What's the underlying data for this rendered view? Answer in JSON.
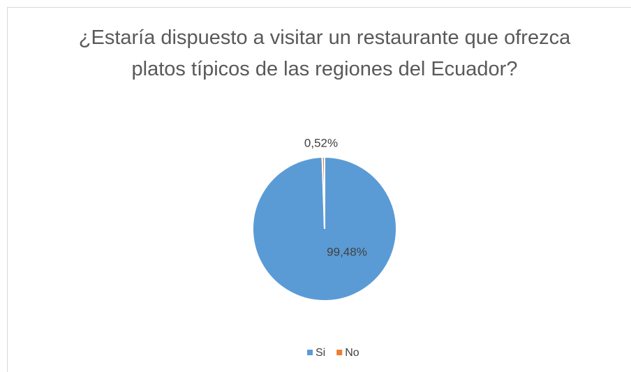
{
  "chart_data": {
    "type": "pie",
    "title": "¿Estaría dispuesto a visitar un restaurante que ofrezca platos típicos de las regiones del Ecuador?",
    "categories": [
      "Si",
      "No"
    ],
    "values": [
      99.48,
      0.52
    ],
    "value_labels": [
      "99,48%",
      "0,52%"
    ],
    "colors": [
      "#5b9bd5",
      "#ed7d31"
    ],
    "legend": "bottom"
  }
}
